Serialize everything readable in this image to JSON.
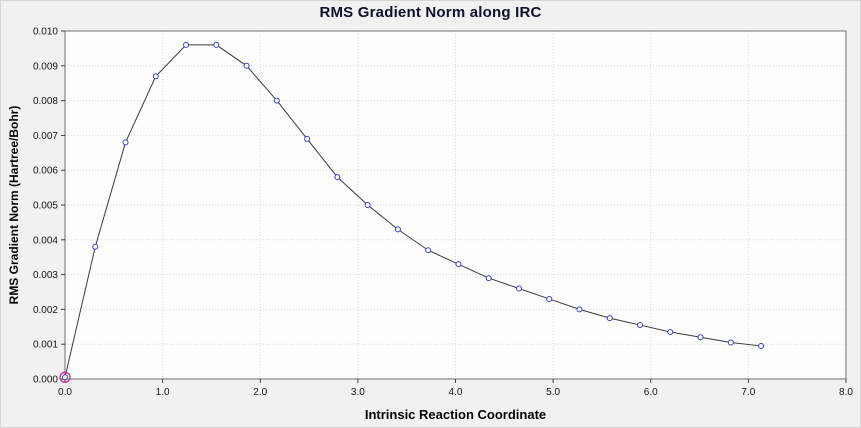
{
  "chart_data": {
    "type": "line",
    "title": "RMS Gradient Norm along IRC",
    "xlabel": "Intrinsic Reaction Coordinate",
    "ylabel": "RMS Gradient Norm (Hartree/Bohr)",
    "xlim": [
      0.0,
      8.0
    ],
    "ylim": [
      0.0,
      0.01
    ],
    "grid": true,
    "x_ticks": [
      0.0,
      1.0,
      2.0,
      3.0,
      4.0,
      5.0,
      6.0,
      7.0,
      8.0
    ],
    "x_tick_labels": [
      "0.0",
      "1.0",
      "2.0",
      "3.0",
      "4.0",
      "5.0",
      "6.0",
      "7.0",
      "8.0"
    ],
    "y_ticks": [
      0.0,
      0.001,
      0.002,
      0.003,
      0.004,
      0.005,
      0.006,
      0.007,
      0.008,
      0.009,
      0.01
    ],
    "y_tick_labels": [
      "0.000",
      "0.001",
      "0.002",
      "0.003",
      "0.004",
      "0.005",
      "0.006",
      "0.007",
      "0.008",
      "0.009",
      "0.010"
    ],
    "x": [
      0.0,
      0.31,
      0.62,
      0.93,
      1.24,
      1.55,
      1.86,
      2.17,
      2.48,
      2.79,
      3.1,
      3.41,
      3.72,
      4.03,
      4.34,
      4.65,
      4.96,
      5.27,
      5.58,
      5.89,
      6.2,
      6.51,
      6.82,
      7.13
    ],
    "y": [
      5e-05,
      0.0038,
      0.0068,
      0.0087,
      0.0096,
      0.0096,
      0.009,
      0.008,
      0.0069,
      0.0058,
      0.005,
      0.0043,
      0.0037,
      0.0033,
      0.0029,
      0.0026,
      0.0023,
      0.002,
      0.00175,
      0.00155,
      0.00135,
      0.0012,
      0.00105,
      0.00095
    ],
    "highlight_point": {
      "x": 0.0,
      "y": 5e-05
    },
    "colors": {
      "page_bg": "#f1f1f2",
      "plot_bg": "#fdfdfd",
      "frame": "#707070",
      "grid": "#d9d9dd",
      "line": "#3a3a3a",
      "marker": "#3c3ccc",
      "highlight": "#cc3a8e",
      "title": "#10102a",
      "tick_text": "#141414"
    }
  }
}
